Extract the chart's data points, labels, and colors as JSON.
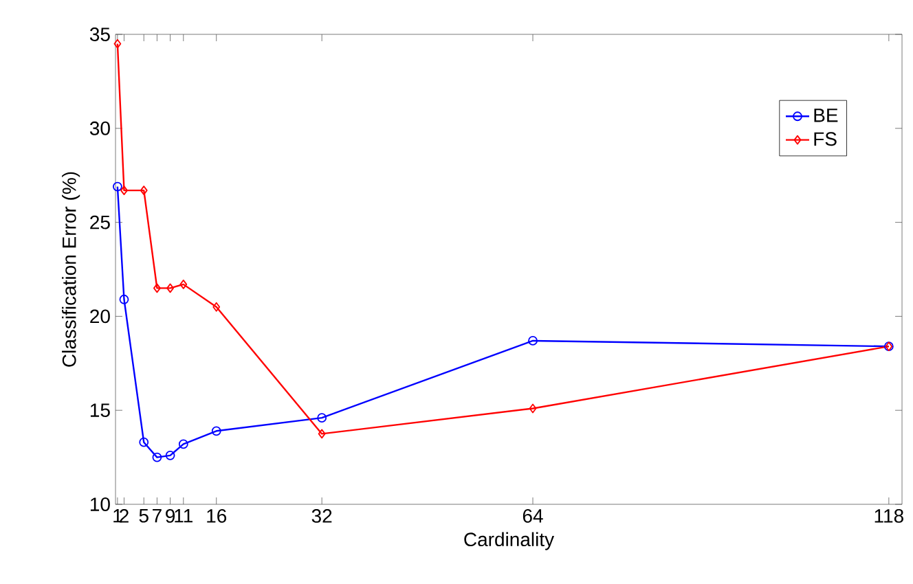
{
  "chart_data": {
    "type": "line",
    "xlabel": "Cardinality",
    "ylabel": "Classification Error (%)",
    "x": [
      1,
      2,
      5,
      7,
      9,
      11,
      16,
      32,
      64,
      118
    ],
    "series": [
      {
        "name": "BE",
        "color": "#0000ff",
        "marker": "circle",
        "values": [
          26.9,
          20.9,
          13.3,
          12.5,
          12.6,
          13.2,
          13.9,
          14.6,
          18.7,
          18.4
        ]
      },
      {
        "name": "FS",
        "color": "#ff0000",
        "marker": "diamond",
        "values": [
          34.5,
          26.7,
          26.7,
          21.5,
          21.5,
          21.7,
          20.5,
          13.75,
          15.1,
          18.4
        ]
      }
    ],
    "xlim": [
      0.7,
      120
    ],
    "ylim": [
      10,
      35
    ],
    "xticks": [
      1,
      2,
      5,
      7,
      9,
      11,
      16,
      32,
      64,
      118
    ],
    "yticks": [
      10,
      15,
      20,
      25,
      30,
      35
    ],
    "grid": false,
    "legend": "top right"
  }
}
